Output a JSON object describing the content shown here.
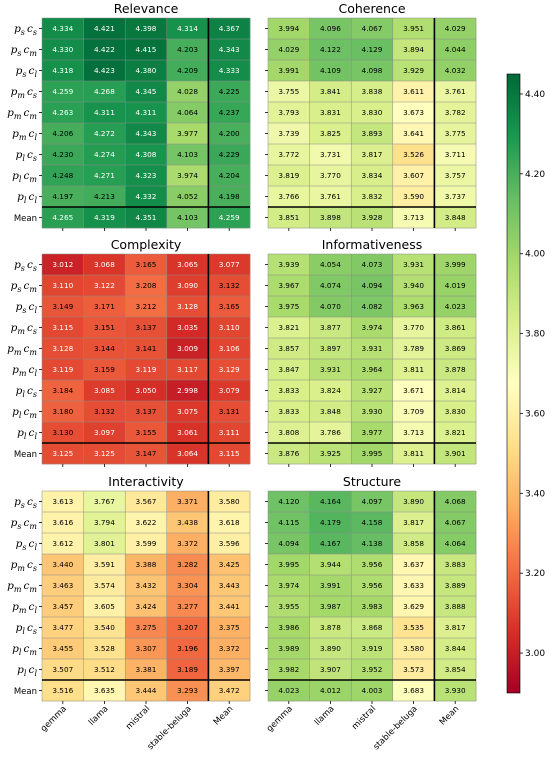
{
  "chart_data": {
    "type": "heatmap",
    "colorbar": {
      "min": 2.9,
      "max": 4.45,
      "ticks": [
        "3.00",
        "3.20",
        "3.40",
        "3.60",
        "3.80",
        "4.00",
        "4.20",
        "4.40"
      ],
      "colormap": "RdYlGn"
    },
    "columns": [
      "gemma",
      "llama",
      "mistral",
      "stable-beluga",
      "Mean"
    ],
    "rows": [
      {
        "label": "p_s c_s",
        "p": "p",
        "ps": "s",
        "c": "c",
        "cs": "s"
      },
      {
        "label": "p_s c_m",
        "p": "p",
        "ps": "s",
        "c": "c",
        "cs": "m"
      },
      {
        "label": "p_s c_l",
        "p": "p",
        "ps": "s",
        "c": "c",
        "cs": "l"
      },
      {
        "label": "p_m c_s",
        "p": "p",
        "ps": "m",
        "c": "c",
        "cs": "s"
      },
      {
        "label": "p_m c_m",
        "p": "p",
        "ps": "m",
        "c": "c",
        "cs": "m"
      },
      {
        "label": "p_m c_l",
        "p": "p",
        "ps": "m",
        "c": "c",
        "cs": "l"
      },
      {
        "label": "p_l c_s",
        "p": "p",
        "ps": "l",
        "c": "c",
        "cs": "s"
      },
      {
        "label": "p_l c_m",
        "p": "p",
        "ps": "l",
        "c": "c",
        "cs": "m"
      },
      {
        "label": "p_l c_l",
        "p": "p",
        "ps": "l",
        "c": "c",
        "cs": "l"
      },
      {
        "label": "Mean"
      }
    ],
    "panels": [
      {
        "title": "Relevance",
        "values": [
          [
            "4.334",
            "4.421",
            "4.398",
            "4.314",
            "4.367"
          ],
          [
            "4.330",
            "4.422",
            "4.415",
            "4.203",
            "4.343"
          ],
          [
            "4.318",
            "4.423",
            "4.380",
            "4.209",
            "4.333"
          ],
          [
            "4.259",
            "4.268",
            "4.345",
            "4.028",
            "4.225"
          ],
          [
            "4.263",
            "4.311",
            "4.311",
            "4.064",
            "4.237"
          ],
          [
            "4.206",
            "4.272",
            "4.343",
            "3.977",
            "4.200"
          ],
          [
            "4.230",
            "4.274",
            "4.308",
            "4.103",
            "4.229"
          ],
          [
            "4.248",
            "4.271",
            "4.323",
            "3.974",
            "4.204"
          ],
          [
            "4.197",
            "4.213",
            "4.332",
            "4.052",
            "4.198"
          ],
          [
            "4.265",
            "4.319",
            "4.351",
            "4.103",
            "4.259"
          ]
        ]
      },
      {
        "title": "Coherence",
        "values": [
          [
            "3.994",
            "4.096",
            "4.067",
            "3.951",
            "4.029"
          ],
          [
            "4.029",
            "4.122",
            "4.129",
            "3.894",
            "4.044"
          ],
          [
            "3.991",
            "4.109",
            "4.098",
            "3.929",
            "4.032"
          ],
          [
            "3.755",
            "3.841",
            "3.838",
            "3.611",
            "3.761"
          ],
          [
            "3.793",
            "3.831",
            "3.830",
            "3.673",
            "3.782"
          ],
          [
            "3.739",
            "3.825",
            "3.893",
            "3.641",
            "3.775"
          ],
          [
            "3.772",
            "3.731",
            "3.817",
            "3.526",
            "3.711"
          ],
          [
            "3.819",
            "3.770",
            "3.834",
            "3.607",
            "3.757"
          ],
          [
            "3.766",
            "3.761",
            "3.832",
            "3.590",
            "3.737"
          ],
          [
            "3.851",
            "3.898",
            "3.928",
            "3.713",
            "3.848"
          ]
        ]
      },
      {
        "title": "Complexity",
        "values": [
          [
            "3.012",
            "3.068",
            "3.165",
            "3.065",
            "3.077"
          ],
          [
            "3.110",
            "3.122",
            "3.208",
            "3.090",
            "3.132"
          ],
          [
            "3.149",
            "3.171",
            "3.212",
            "3.128",
            "3.165"
          ],
          [
            "3.115",
            "3.151",
            "3.137",
            "3.035",
            "3.110"
          ],
          [
            "3.128",
            "3.144",
            "3.141",
            "3.009",
            "3.106"
          ],
          [
            "3.119",
            "3.159",
            "3.119",
            "3.117",
            "3.129"
          ],
          [
            "3.184",
            "3.085",
            "3.050",
            "2.998",
            "3.079"
          ],
          [
            "3.180",
            "3.132",
            "3.137",
            "3.075",
            "3.131"
          ],
          [
            "3.130",
            "3.097",
            "3.155",
            "3.061",
            "3.111"
          ],
          [
            "3.125",
            "3.125",
            "3.147",
            "3.064",
            "3.115"
          ]
        ]
      },
      {
        "title": "Informativeness",
        "values": [
          [
            "3.939",
            "4.054",
            "4.073",
            "3.931",
            "3.999"
          ],
          [
            "3.967",
            "4.074",
            "4.094",
            "3.940",
            "4.019"
          ],
          [
            "3.975",
            "4.070",
            "4.082",
            "3.963",
            "4.023"
          ],
          [
            "3.821",
            "3.877",
            "3.974",
            "3.770",
            "3.861"
          ],
          [
            "3.857",
            "3.897",
            "3.931",
            "3.789",
            "3.869"
          ],
          [
            "3.847",
            "3.931",
            "3.964",
            "3.811",
            "3.878"
          ],
          [
            "3.833",
            "3.824",
            "3.927",
            "3.671",
            "3.814"
          ],
          [
            "3.833",
            "3.848",
            "3.930",
            "3.709",
            "3.830"
          ],
          [
            "3.808",
            "3.786",
            "3.977",
            "3.713",
            "3.821"
          ],
          [
            "3.876",
            "3.925",
            "3.995",
            "3.811",
            "3.901"
          ]
        ]
      },
      {
        "title": "Interactivity",
        "values": [
          [
            "3.613",
            "3.767",
            "3.567",
            "3.371",
            "3.580"
          ],
          [
            "3.616",
            "3.794",
            "3.622",
            "3.438",
            "3.618"
          ],
          [
            "3.612",
            "3.801",
            "3.599",
            "3.372",
            "3.596"
          ],
          [
            "3.440",
            "3.591",
            "3.388",
            "3.282",
            "3.425"
          ],
          [
            "3.463",
            "3.574",
            "3.432",
            "3.304",
            "3.443"
          ],
          [
            "3.457",
            "3.605",
            "3.424",
            "3.277",
            "3.441"
          ],
          [
            "3.477",
            "3.540",
            "3.275",
            "3.207",
            "3.375"
          ],
          [
            "3.455",
            "3.528",
            "3.307",
            "3.196",
            "3.372"
          ],
          [
            "3.507",
            "3.512",
            "3.381",
            "3.189",
            "3.397"
          ],
          [
            "3.516",
            "3.635",
            "3.444",
            "3.293",
            "3.472"
          ]
        ]
      },
      {
        "title": "Structure",
        "values": [
          [
            "4.120",
            "4.164",
            "4.097",
            "3.890",
            "4.068"
          ],
          [
            "4.115",
            "4.179",
            "4.158",
            "3.817",
            "4.067"
          ],
          [
            "4.094",
            "4.167",
            "4.138",
            "3.858",
            "4.064"
          ],
          [
            "3.995",
            "3.944",
            "3.956",
            "3.637",
            "3.883"
          ],
          [
            "3.974",
            "3.991",
            "3.956",
            "3.633",
            "3.889"
          ],
          [
            "3.955",
            "3.987",
            "3.983",
            "3.629",
            "3.888"
          ],
          [
            "3.986",
            "3.878",
            "3.868",
            "3.535",
            "3.817"
          ],
          [
            "3.989",
            "3.890",
            "3.919",
            "3.580",
            "3.844"
          ],
          [
            "3.982",
            "3.907",
            "3.952",
            "3.573",
            "3.854"
          ],
          [
            "4.023",
            "4.012",
            "4.003",
            "3.683",
            "3.930"
          ]
        ]
      }
    ]
  }
}
